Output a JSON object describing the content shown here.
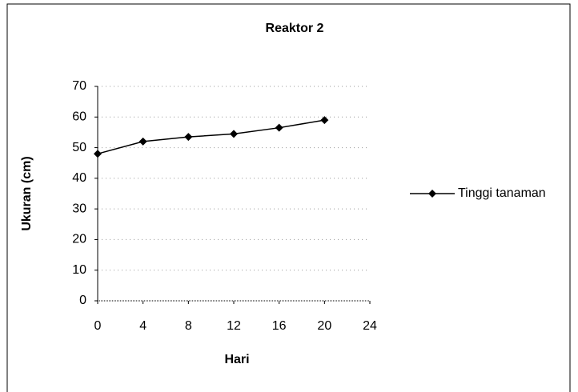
{
  "chart_data": {
    "type": "line",
    "title": "Reaktor 2",
    "x_label": "Hari",
    "y_label": "Ukuran (cm)",
    "x": [
      0,
      4,
      8,
      12,
      16,
      20
    ],
    "series": [
      {
        "name": "Tinggi tanaman",
        "color": "#000000",
        "values": [
          48,
          52,
          53.5,
          54.5,
          56.5,
          59
        ]
      }
    ],
    "xlim": [
      0,
      24
    ],
    "xticks": [
      0,
      4,
      8,
      12,
      16,
      20,
      24
    ],
    "ylim": [
      0,
      70
    ],
    "yticks": [
      0,
      10,
      20,
      30,
      40,
      50,
      60,
      70
    ],
    "grid": true,
    "legend": "right"
  }
}
